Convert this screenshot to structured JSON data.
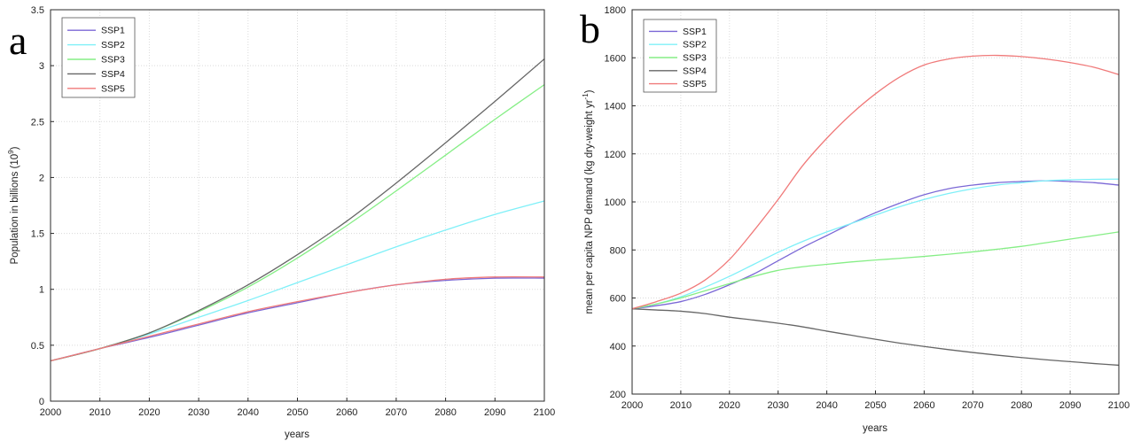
{
  "chart_data": [
    {
      "panel_label": "a",
      "type": "line",
      "xlabel": "years",
      "ylabel": "Population in billions (10",
      "ylabel_sup": "9",
      "ylabel_tail": ")",
      "xlim": [
        2000,
        2100
      ],
      "ylim": [
        0,
        3.5
      ],
      "xticks": [
        2000,
        2010,
        2020,
        2030,
        2040,
        2050,
        2060,
        2070,
        2080,
        2090,
        2100
      ],
      "yticks": [
        0,
        0.5,
        1,
        1.5,
        2,
        2.5,
        3,
        3.5
      ],
      "ytick_labels": [
        "0",
        "0.5",
        "1",
        "1.5",
        "2",
        "2.5",
        "3",
        "3.5"
      ],
      "grid": true,
      "legend": "top-left",
      "x": [
        2000,
        2010,
        2020,
        2030,
        2040,
        2050,
        2060,
        2070,
        2080,
        2090,
        2100
      ],
      "series": [
        {
          "name": "SSP1",
          "color": "#7b68d6",
          "values": [
            0.36,
            0.47,
            0.57,
            0.68,
            0.79,
            0.88,
            0.97,
            1.04,
            1.08,
            1.1,
            1.1
          ]
        },
        {
          "name": "SSP2",
          "color": "#7ff0f8",
          "values": [
            0.36,
            0.47,
            0.6,
            0.75,
            0.9,
            1.06,
            1.22,
            1.38,
            1.53,
            1.67,
            1.79
          ]
        },
        {
          "name": "SSP3",
          "color": "#86ee86",
          "values": [
            0.36,
            0.47,
            0.61,
            0.8,
            1.02,
            1.28,
            1.57,
            1.88,
            2.2,
            2.52,
            2.83
          ]
        },
        {
          "name": "SSP4",
          "color": "#666666",
          "values": [
            0.36,
            0.47,
            0.61,
            0.81,
            1.04,
            1.31,
            1.61,
            1.95,
            2.31,
            2.68,
            3.06
          ]
        },
        {
          "name": "SSP5",
          "color": "#f07a7a",
          "values": [
            0.36,
            0.47,
            0.58,
            0.69,
            0.8,
            0.89,
            0.97,
            1.04,
            1.09,
            1.11,
            1.11
          ]
        }
      ]
    },
    {
      "panel_label": "b",
      "type": "line",
      "xlabel": "years",
      "ylabel": "mean per capita NPP demand (kg dry-weight yr",
      "ylabel_sup": "-1",
      "ylabel_tail": ")",
      "xlim": [
        2000,
        2100
      ],
      "ylim": [
        200,
        1800
      ],
      "xticks": [
        2000,
        2010,
        2020,
        2030,
        2040,
        2050,
        2060,
        2070,
        2080,
        2090,
        2100
      ],
      "yticks": [
        200,
        400,
        600,
        800,
        1000,
        1200,
        1400,
        1600,
        1800
      ],
      "ytick_labels": [
        "200",
        "400",
        "600",
        "800",
        "1000",
        "1200",
        "1400",
        "1600",
        "1800"
      ],
      "grid": true,
      "legend": "top-left",
      "x": [
        2000,
        2005,
        2010,
        2015,
        2020,
        2025,
        2030,
        2035,
        2040,
        2045,
        2050,
        2055,
        2060,
        2065,
        2070,
        2075,
        2080,
        2085,
        2090,
        2095,
        2100
      ],
      "series": [
        {
          "name": "SSP1",
          "color": "#7b68d6",
          "values": [
            555,
            568,
            585,
            615,
            655,
            700,
            755,
            810,
            860,
            910,
            955,
            995,
            1030,
            1055,
            1070,
            1080,
            1085,
            1088,
            1085,
            1080,
            1070
          ]
        },
        {
          "name": "SSP2",
          "color": "#7ff0f8",
          "values": [
            555,
            575,
            605,
            645,
            690,
            740,
            790,
            835,
            875,
            910,
            945,
            980,
            1010,
            1035,
            1055,
            1070,
            1080,
            1088,
            1092,
            1094,
            1095
          ]
        },
        {
          "name": "SSP3",
          "color": "#86ee86",
          "values": [
            555,
            575,
            600,
            630,
            660,
            690,
            715,
            730,
            740,
            750,
            758,
            765,
            773,
            782,
            792,
            803,
            815,
            830,
            845,
            860,
            875
          ]
        },
        {
          "name": "SSP4",
          "color": "#666666",
          "values": [
            555,
            550,
            545,
            535,
            520,
            508,
            495,
            480,
            462,
            445,
            428,
            412,
            398,
            385,
            373,
            362,
            352,
            343,
            335,
            327,
            320
          ]
        },
        {
          "name": "SSP5",
          "color": "#f07a7a",
          "values": [
            555,
            585,
            620,
            675,
            760,
            880,
            1010,
            1150,
            1265,
            1365,
            1450,
            1520,
            1570,
            1595,
            1607,
            1610,
            1605,
            1595,
            1580,
            1560,
            1530
          ]
        }
      ]
    }
  ]
}
